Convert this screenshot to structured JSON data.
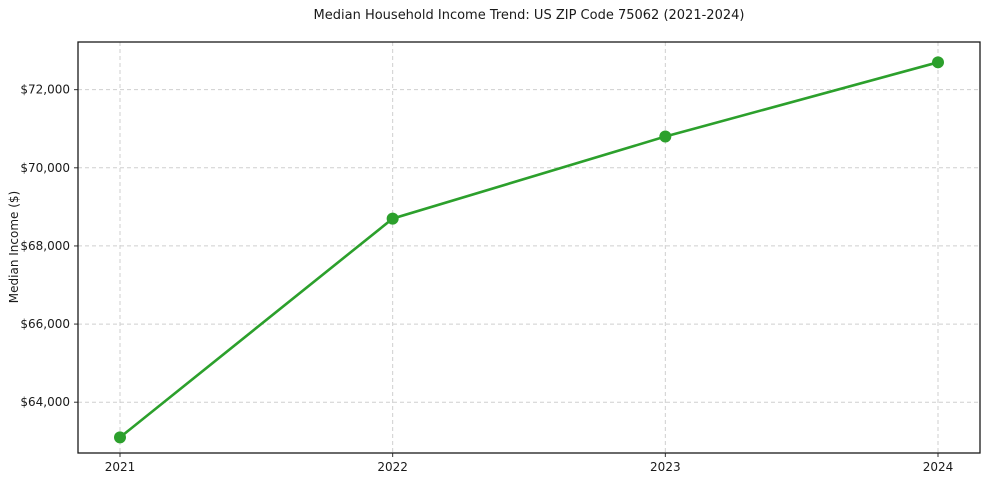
{
  "title": "Median Household Income Trend: US ZIP Code 75062 (2021-2024)",
  "chart_data": {
    "type": "line",
    "title": "Median Household Income Trend: US ZIP Code 75062 (2021-2024)",
    "categories": [
      "2021",
      "2022",
      "2023",
      "2024"
    ],
    "series": [
      {
        "name": "Median Household Income",
        "values": [
          63100,
          68700,
          70800,
          72700
        ]
      }
    ],
    "xlabel": "",
    "ylabel": "Median Income ($)",
    "ylim": [
      62700,
      73220
    ],
    "xlim": [
      2020.85,
      2024.15
    ],
    "yticks": [
      64000,
      66000,
      68000,
      70000,
      72000
    ],
    "ytick_prefix": "$",
    "grid": true,
    "grid_style": "dashed",
    "legend": false,
    "marker": "circle"
  },
  "colors": {
    "line": "#2ca02c",
    "marker": "#2ca02c",
    "grid": "#cfcfcf",
    "spine": "#1a1a1a",
    "tick": "#333333",
    "text": "#1a1a1a",
    "background": "#ffffff"
  }
}
